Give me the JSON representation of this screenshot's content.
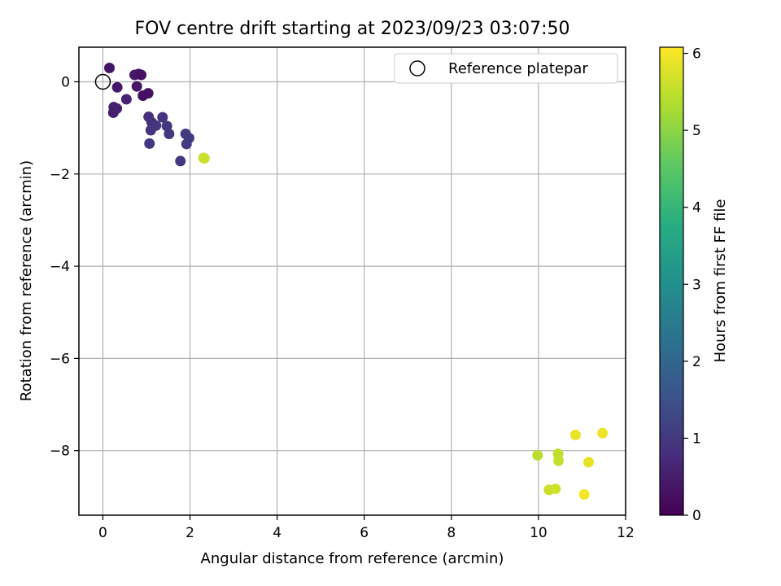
{
  "chart_data": {
    "type": "scatter",
    "title": "FOV centre drift starting at 2023/09/23 03:07:50",
    "xlabel": "Angular distance from reference (arcmin)",
    "ylabel": "Rotation from reference (arcmin)",
    "xlim": [
      -0.55,
      12
    ],
    "ylim": [
      -9.4,
      0.75
    ],
    "xticks": [
      0,
      2,
      4,
      6,
      8,
      10,
      12
    ],
    "yticks": [
      0,
      -2,
      -4,
      -6,
      -8
    ],
    "xtick_labels": [
      "0",
      "2",
      "4",
      "6",
      "8",
      "10",
      "12"
    ],
    "ytick_labels": [
      "0",
      "−2",
      "−4",
      "−6",
      "−8"
    ],
    "grid": true,
    "legend": {
      "placement": "top-right",
      "label": "Reference platepar"
    },
    "reference_point": {
      "x": 0,
      "y": 0
    },
    "colorbar": {
      "label": "Hours from first FF file",
      "colormap": "viridis",
      "range": [
        0,
        6.08
      ],
      "ticks": [
        0,
        1,
        2,
        3,
        4,
        5,
        6
      ],
      "tick_labels": [
        "0",
        "1",
        "2",
        "3",
        "4",
        "5",
        "6"
      ]
    },
    "points": [
      {
        "x": 0.15,
        "y": 0.3,
        "h": 0.35
      },
      {
        "x": 0.73,
        "y": 0.15,
        "h": 0.45
      },
      {
        "x": 0.82,
        "y": 0.17,
        "h": 0.4
      },
      {
        "x": 0.88,
        "y": 0.15,
        "h": 0.3
      },
      {
        "x": 0.33,
        "y": -0.12,
        "h": 0.4
      },
      {
        "x": 0.78,
        "y": -0.1,
        "h": 0.35
      },
      {
        "x": 1.04,
        "y": -0.25,
        "h": 0.3
      },
      {
        "x": 0.92,
        "y": -0.3,
        "h": 0.25
      },
      {
        "x": 0.54,
        "y": -0.38,
        "h": 0.6
      },
      {
        "x": 0.25,
        "y": -0.55,
        "h": 0.5
      },
      {
        "x": 0.32,
        "y": -0.58,
        "h": 0.55
      },
      {
        "x": 0.24,
        "y": -0.67,
        "h": 0.5
      },
      {
        "x": 1.05,
        "y": -0.76,
        "h": 0.85
      },
      {
        "x": 1.37,
        "y": -0.77,
        "h": 0.9
      },
      {
        "x": 1.12,
        "y": -0.88,
        "h": 0.85
      },
      {
        "x": 1.22,
        "y": -0.95,
        "h": 0.95
      },
      {
        "x": 1.47,
        "y": -0.96,
        "h": 0.95
      },
      {
        "x": 1.1,
        "y": -1.05,
        "h": 0.9
      },
      {
        "x": 1.52,
        "y": -1.13,
        "h": 0.95
      },
      {
        "x": 1.9,
        "y": -1.13,
        "h": 1.05
      },
      {
        "x": 1.98,
        "y": -1.22,
        "h": 1.05
      },
      {
        "x": 1.07,
        "y": -1.34,
        "h": 1.0
      },
      {
        "x": 1.92,
        "y": -1.35,
        "h": 1.05
      },
      {
        "x": 1.78,
        "y": -1.72,
        "h": 1.0
      },
      {
        "x": 2.31,
        "y": -1.65,
        "h": 5.55
      },
      {
        "x": 2.33,
        "y": -1.66,
        "h": 5.6
      },
      {
        "x": 9.98,
        "y": -8.1,
        "h": 5.45
      },
      {
        "x": 10.45,
        "y": -8.07,
        "h": 5.5
      },
      {
        "x": 10.46,
        "y": -8.22,
        "h": 5.55
      },
      {
        "x": 10.85,
        "y": -7.66,
        "h": 5.9
      },
      {
        "x": 11.47,
        "y": -7.62,
        "h": 5.95
      },
      {
        "x": 11.15,
        "y": -8.25,
        "h": 5.85
      },
      {
        "x": 10.24,
        "y": -8.85,
        "h": 5.6
      },
      {
        "x": 10.39,
        "y": -8.83,
        "h": 5.65
      },
      {
        "x": 11.05,
        "y": -8.95,
        "h": 6.0
      }
    ]
  }
}
